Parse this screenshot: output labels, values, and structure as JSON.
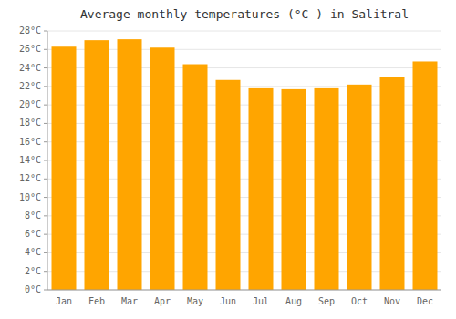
{
  "chart_data": {
    "type": "bar",
    "title": "Average monthly temperatures (°C ) in Salitral",
    "categories": [
      "Jan",
      "Feb",
      "Mar",
      "Apr",
      "May",
      "Jun",
      "Jul",
      "Aug",
      "Sep",
      "Oct",
      "Nov",
      "Dec"
    ],
    "values": [
      26.3,
      27.0,
      27.1,
      26.2,
      24.4,
      22.7,
      21.8,
      21.7,
      21.8,
      22.2,
      23.0,
      24.7
    ],
    "color": "#FFA500",
    "ylim": [
      0,
      28
    ],
    "yticks": [
      {
        "value": 0,
        "label": "0°C"
      },
      {
        "value": 2,
        "label": "2°C"
      },
      {
        "value": 4,
        "label": "4°C"
      },
      {
        "value": 6,
        "label": "6°C"
      },
      {
        "value": 8,
        "label": "8°C"
      },
      {
        "value": 10,
        "label": "10°C"
      },
      {
        "value": 12,
        "label": "12°C"
      },
      {
        "value": 14,
        "label": "14°C"
      },
      {
        "value": 16,
        "label": "16°C"
      },
      {
        "value": 18,
        "label": "18°C"
      },
      {
        "value": 20,
        "label": "20°C"
      },
      {
        "value": 22,
        "label": "22°C"
      },
      {
        "value": 24,
        "label": "24°C"
      },
      {
        "value": 26,
        "label": "26°C"
      },
      {
        "value": 28,
        "label": "28°C"
      }
    ],
    "grid": true
  }
}
